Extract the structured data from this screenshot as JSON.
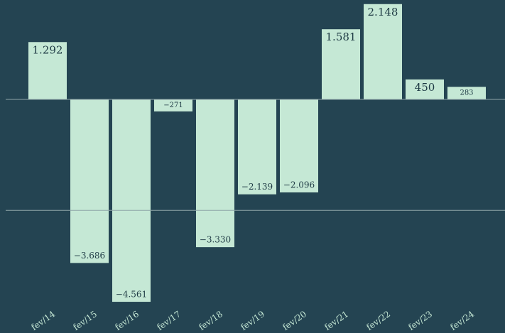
{
  "chart_data": {
    "type": "bar",
    "categories": [
      "fev/14",
      "fev/15",
      "fev/16",
      "fev/17",
      "fev/18",
      "fev/19",
      "fev/20",
      "fev/21",
      "fev/22",
      "fev/23",
      "fev/24"
    ],
    "values": [
      1292,
      -3686,
      -4561,
      -271,
      -3330,
      -2139,
      -2096,
      1581,
      2148,
      450,
      283
    ],
    "value_labels": [
      "1.292",
      "−3.686",
      "−4.561",
      "−271",
      "−3.330",
      "−2.139",
      "−2.096",
      "1.581",
      "2.148",
      "450",
      "283"
    ],
    "color": "#c5e8d5",
    "ylim": [
      -4800,
      2240
    ],
    "yticks": [
      -2500,
      0
    ],
    "grid": true
  }
}
